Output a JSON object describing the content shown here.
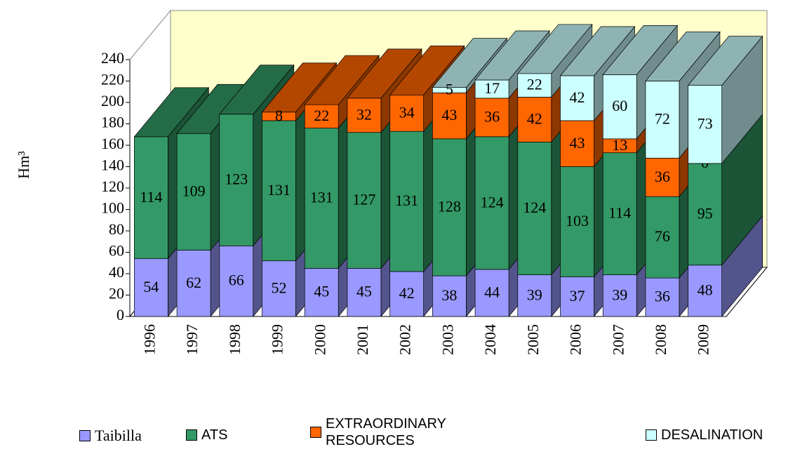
{
  "chart_data": {
    "type": "bar3d_stacked",
    "y_label": "Hm³",
    "categories": [
      "1996",
      "1997",
      "1998",
      "1999",
      "2000",
      "2001",
      "2002",
      "2003",
      "2004",
      "2005",
      "2006",
      "2007",
      "2008",
      "2009"
    ],
    "series": [
      {
        "name": "Taibilla",
        "color": "#9999ff",
        "values": [
          54,
          62,
          66,
          52,
          45,
          45,
          42,
          38,
          44,
          39,
          37,
          39,
          36,
          48
        ]
      },
      {
        "name": "ATS",
        "color": "#339966",
        "values": [
          114,
          109,
          123,
          131,
          131,
          127,
          131,
          128,
          124,
          124,
          103,
          114,
          76,
          95
        ]
      },
      {
        "name": "EXTRAORDINARY RESOURCES",
        "color": "#ff6600",
        "values": [
          null,
          null,
          null,
          8,
          22,
          32,
          34,
          43,
          36,
          42,
          43,
          13,
          36,
          0
        ]
      },
      {
        "name": "DESALINATION",
        "color": "#ccffff",
        "values": [
          null,
          null,
          null,
          null,
          null,
          null,
          null,
          5,
          17,
          22,
          42,
          60,
          72,
          73
        ]
      }
    ],
    "ylim": [
      0,
      240
    ],
    "yticks": [
      0,
      20,
      40,
      60,
      80,
      100,
      120,
      140,
      160,
      180,
      200,
      220,
      240
    ],
    "wall_color": "#ffffcc"
  }
}
